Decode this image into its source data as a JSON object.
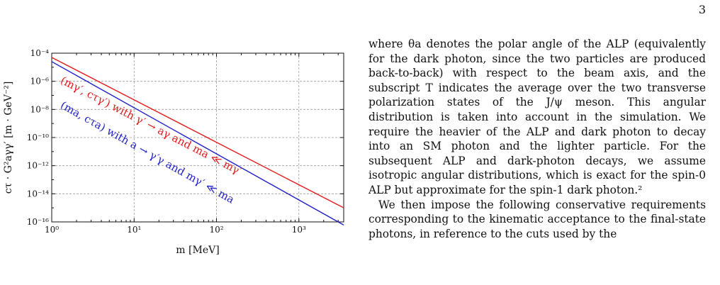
{
  "page_number": "3",
  "chart_data": {
    "type": "line",
    "xlabel": "m [MeV]",
    "ylabel": "cτ · G²aγγ′ [m · GeV⁻²]",
    "x_scale": "log",
    "y_scale": "log",
    "xlim": [
      1,
      3500
    ],
    "ylim": [
      1e-16,
      0.0001
    ],
    "x_ticks": [
      {
        "value": 1,
        "label": "10⁰"
      },
      {
        "value": 10,
        "label": "10¹"
      },
      {
        "value": 100,
        "label": "10²"
      },
      {
        "value": 1000,
        "label": "10³"
      }
    ],
    "y_ticks": [
      {
        "value": 0.0001,
        "label": "10⁻⁴"
      },
      {
        "value": 1e-06,
        "label": "10⁻⁶"
      },
      {
        "value": 1e-08,
        "label": "10⁻⁸"
      },
      {
        "value": 1e-10,
        "label": "10⁻¹⁰"
      },
      {
        "value": 1e-12,
        "label": "10⁻¹²"
      },
      {
        "value": 1e-14,
        "label": "10⁻¹⁴"
      },
      {
        "value": 1e-16,
        "label": "10⁻¹⁶"
      }
    ],
    "grid": true,
    "series": [
      {
        "color": "#e31a1c",
        "x": [
          1,
          3500
        ],
        "y": [
          5e-05,
          1e-15
        ]
      },
      {
        "color": "#1f1fc8",
        "x": [
          1,
          3500
        ],
        "y": [
          2.5e-05,
          6e-17
        ]
      }
    ],
    "annotations": [
      {
        "text": "(mγ′, cτγ′) with γ′ → aγ and ma ≪ mγ′",
        "color": "#e31a1c",
        "x": 1.25,
        "y": 8e-07
      },
      {
        "text": "(ma, cτa) with a → γ′γ and mγ′ ≪ ma",
        "color": "#1f1fc8",
        "x": 1.25,
        "y": 1.4e-08
      }
    ]
  },
  "text": {
    "paragraph1": "where θa denotes the polar angle of the ALP (equivalently for the dark photon, since the two particles are produced back-to-back) with respect to the beam axis, and the subscript T indicates the average over the two transverse polarization states of the J/ψ meson. This angular distribution is taken into account in the simulation. We require the heavier of the ALP and dark photon to decay into an SM photon and the lighter particle. For the subsequent ALP and dark-photon decays, we assume isotropic angular distributions, which is exact for the spin-0 ALP but approximate for the spin-1 dark photon.²",
    "paragraph2": "We then impose the following conservative requirements corresponding to the kinematic acceptance to the final-state photons, in reference to the cuts used by the"
  }
}
